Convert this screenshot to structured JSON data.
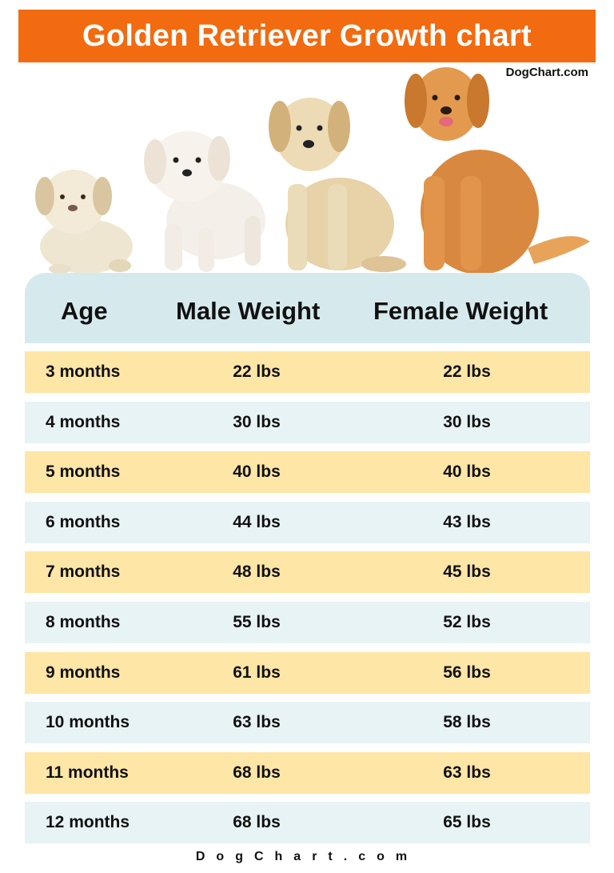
{
  "title": "Golden Retriever Growth chart",
  "brand_top": "DogChart.com",
  "footer": "DogChart.com",
  "colors": {
    "title_bg": "#f26b10",
    "header_bg": "#d6eaee",
    "row_odd": "#fde6a6",
    "row_even": "#e8f3f5"
  },
  "images": [
    "puppy-3-months",
    "puppy-white",
    "puppy-young-golden",
    "adult-golden-retriever"
  ],
  "chart_data": {
    "type": "table",
    "columns": [
      "Age",
      "Male Weight",
      "Female Weight"
    ],
    "rows": [
      [
        "3 months",
        "22 lbs",
        "22 lbs"
      ],
      [
        "4 months",
        "30 lbs",
        "30 lbs"
      ],
      [
        "5 months",
        "40 lbs",
        "40 lbs"
      ],
      [
        "6 months",
        "44 lbs",
        "43 lbs"
      ],
      [
        "7 months",
        "48 lbs",
        "45 lbs"
      ],
      [
        "8 months",
        "55 lbs",
        "52 lbs"
      ],
      [
        "9 months",
        "61 lbs",
        "56 lbs"
      ],
      [
        "10 months",
        "63 lbs",
        "58 lbs"
      ],
      [
        "11 months",
        "68 lbs",
        "63 lbs"
      ],
      [
        "12 months",
        "68 lbs",
        "65 lbs"
      ]
    ]
  }
}
